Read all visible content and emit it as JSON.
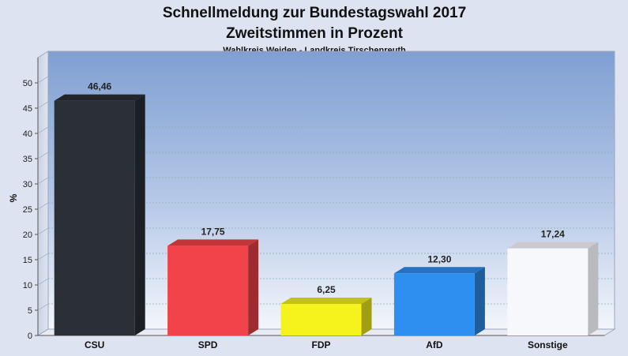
{
  "chart_data": {
    "type": "bar",
    "title": "Schnellmeldung zur Bundestagswahl 2017",
    "subtitle": "Zweitstimmen in Prozent",
    "caption": "Wahlkreis Weiden - Landkreis Tirschenreuth",
    "ylabel": "%",
    "xlabel": "",
    "ylim": [
      0,
      55
    ],
    "yticks": [
      0,
      5,
      10,
      15,
      20,
      25,
      30,
      35,
      40,
      45,
      50
    ],
    "grid": true,
    "categories": [
      "CSU",
      "SPD",
      "FDP",
      "AfD",
      "Sonstige"
    ],
    "values": [
      46.46,
      17.75,
      6.25,
      12.3,
      17.24
    ],
    "value_labels": [
      "46,46",
      "17,75",
      "6,25",
      "12,30",
      "17,24"
    ],
    "colors": [
      "#2b2f36",
      "#f2424a",
      "#f6f31c",
      "#2f8ff0",
      "#f7f8fc"
    ]
  }
}
